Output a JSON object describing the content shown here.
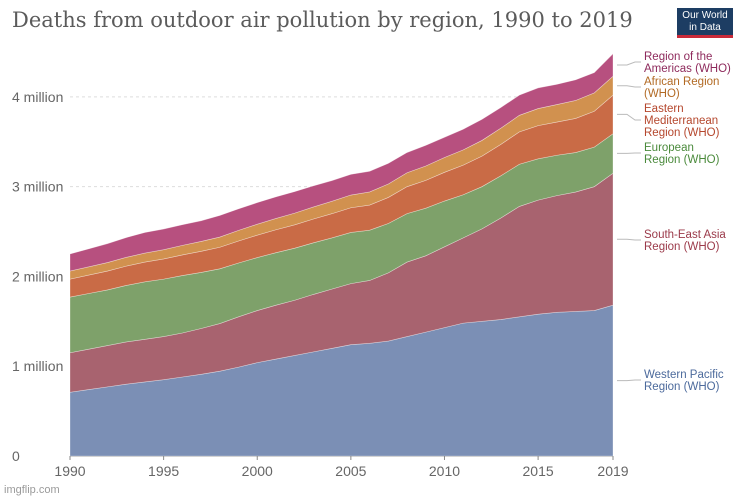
{
  "header": {
    "title": "Deaths from outdoor air pollution by region, 1990 to 2019",
    "logo_line1": "Our World",
    "logo_line2": "in Data"
  },
  "watermark": "imgflip.com",
  "chart_data": {
    "type": "area",
    "stacked": true,
    "title": "Deaths from outdoor air pollution by region, 1990 to 2019",
    "x": [
      1990,
      1991,
      1992,
      1993,
      1994,
      1995,
      1996,
      1997,
      1998,
      1999,
      2000,
      2001,
      2002,
      2003,
      2004,
      2005,
      2006,
      2007,
      2008,
      2009,
      2010,
      2011,
      2012,
      2013,
      2014,
      2015,
      2016,
      2017,
      2018,
      2019
    ],
    "xticks": [
      1990,
      1995,
      2000,
      2005,
      2010,
      2015,
      2019
    ],
    "xtick_labels": [
      "1990",
      "1995",
      "2000",
      "2005",
      "2010",
      "2015",
      "2019"
    ],
    "ylim": [
      0,
      4500000
    ],
    "yticks": [
      0,
      1000000,
      2000000,
      3000000,
      4000000
    ],
    "ytick_labels": [
      "0",
      "1 million",
      "2 million",
      "3 million",
      "4 million"
    ],
    "grid": true,
    "legend_placement": "right",
    "series": [
      {
        "name": "Western Pacific Region (WHO)",
        "label_lines": [
          "Western Pacific",
          "Region (WHO)"
        ],
        "color": "#7b8fb5",
        "label_color": "#4c6a9c",
        "values": [
          710000,
          740000,
          770000,
          800000,
          825000,
          850000,
          880000,
          910000,
          945000,
          990000,
          1040000,
          1080000,
          1120000,
          1160000,
          1200000,
          1240000,
          1255000,
          1280000,
          1330000,
          1380000,
          1430000,
          1480000,
          1500000,
          1520000,
          1550000,
          1580000,
          1600000,
          1610000,
          1620000,
          1680000
        ]
      },
      {
        "name": "South-East Asia Region (WHO)",
        "label_lines": [
          "South-East Asia",
          "Region (WHO)"
        ],
        "color": "#a8636f",
        "label_color": "#9b3a4a",
        "values": [
          440000,
          450000,
          460000,
          470000,
          475000,
          480000,
          490000,
          510000,
          530000,
          560000,
          580000,
          600000,
          615000,
          640000,
          660000,
          680000,
          700000,
          760000,
          830000,
          850000,
          900000,
          950000,
          1030000,
          1130000,
          1230000,
          1270000,
          1300000,
          1330000,
          1380000,
          1470000
        ]
      },
      {
        "name": "European Region (WHO)",
        "label_lines": [
          "European",
          "Region (WHO)"
        ],
        "color": "#7ea16a",
        "label_color": "#4a8a3b",
        "values": [
          620000,
          620000,
          620000,
          630000,
          640000,
          640000,
          640000,
          625000,
          610000,
          600000,
          590000,
          585000,
          580000,
          575000,
          570000,
          570000,
          560000,
          550000,
          540000,
          530000,
          510000,
          480000,
          470000,
          470000,
          470000,
          460000,
          450000,
          440000,
          440000,
          440000
        ]
      },
      {
        "name": "Eastern Mediterranean Region (WHO)",
        "label_lines": [
          "Eastern",
          "Mediterranean",
          "Region (WHO)"
        ],
        "color": "#c96b46",
        "label_color": "#b5472d",
        "values": [
          200000,
          205000,
          210000,
          215000,
          220000,
          225000,
          230000,
          235000,
          240000,
          245000,
          250000,
          255000,
          260000,
          265000,
          270000,
          275000,
          280000,
          290000,
          300000,
          310000,
          320000,
          330000,
          340000,
          350000,
          360000,
          370000,
          370000,
          380000,
          400000,
          430000
        ]
      },
      {
        "name": "African Region (WHO)",
        "label_lines": [
          "African Region",
          "(WHO)"
        ],
        "color": "#d1914f",
        "label_color": "#b26a24",
        "values": [
          90000,
          92000,
          95000,
          98000,
          100000,
          103000,
          106000,
          110000,
          114000,
          118000,
          122000,
          126000,
          130000,
          134000,
          138000,
          142000,
          146000,
          150000,
          155000,
          160000,
          165000,
          170000,
          175000,
          180000,
          185000,
          190000,
          195000,
          200000,
          205000,
          210000
        ]
      },
      {
        "name": "Region of the Americas (WHO)",
        "label_lines": [
          "Region of the",
          "Americas (WHO)"
        ],
        "color": "#b7507f",
        "label_color": "#8e2a5c",
        "values": [
          190000,
          200000,
          210000,
          220000,
          230000,
          230000,
          230000,
          230000,
          240000,
          240000,
          240000,
          240000,
          240000,
          235000,
          230000,
          230000,
          230000,
          230000,
          225000,
          230000,
          225000,
          230000,
          235000,
          230000,
          225000,
          230000,
          225000,
          230000,
          225000,
          250000
        ]
      }
    ]
  }
}
